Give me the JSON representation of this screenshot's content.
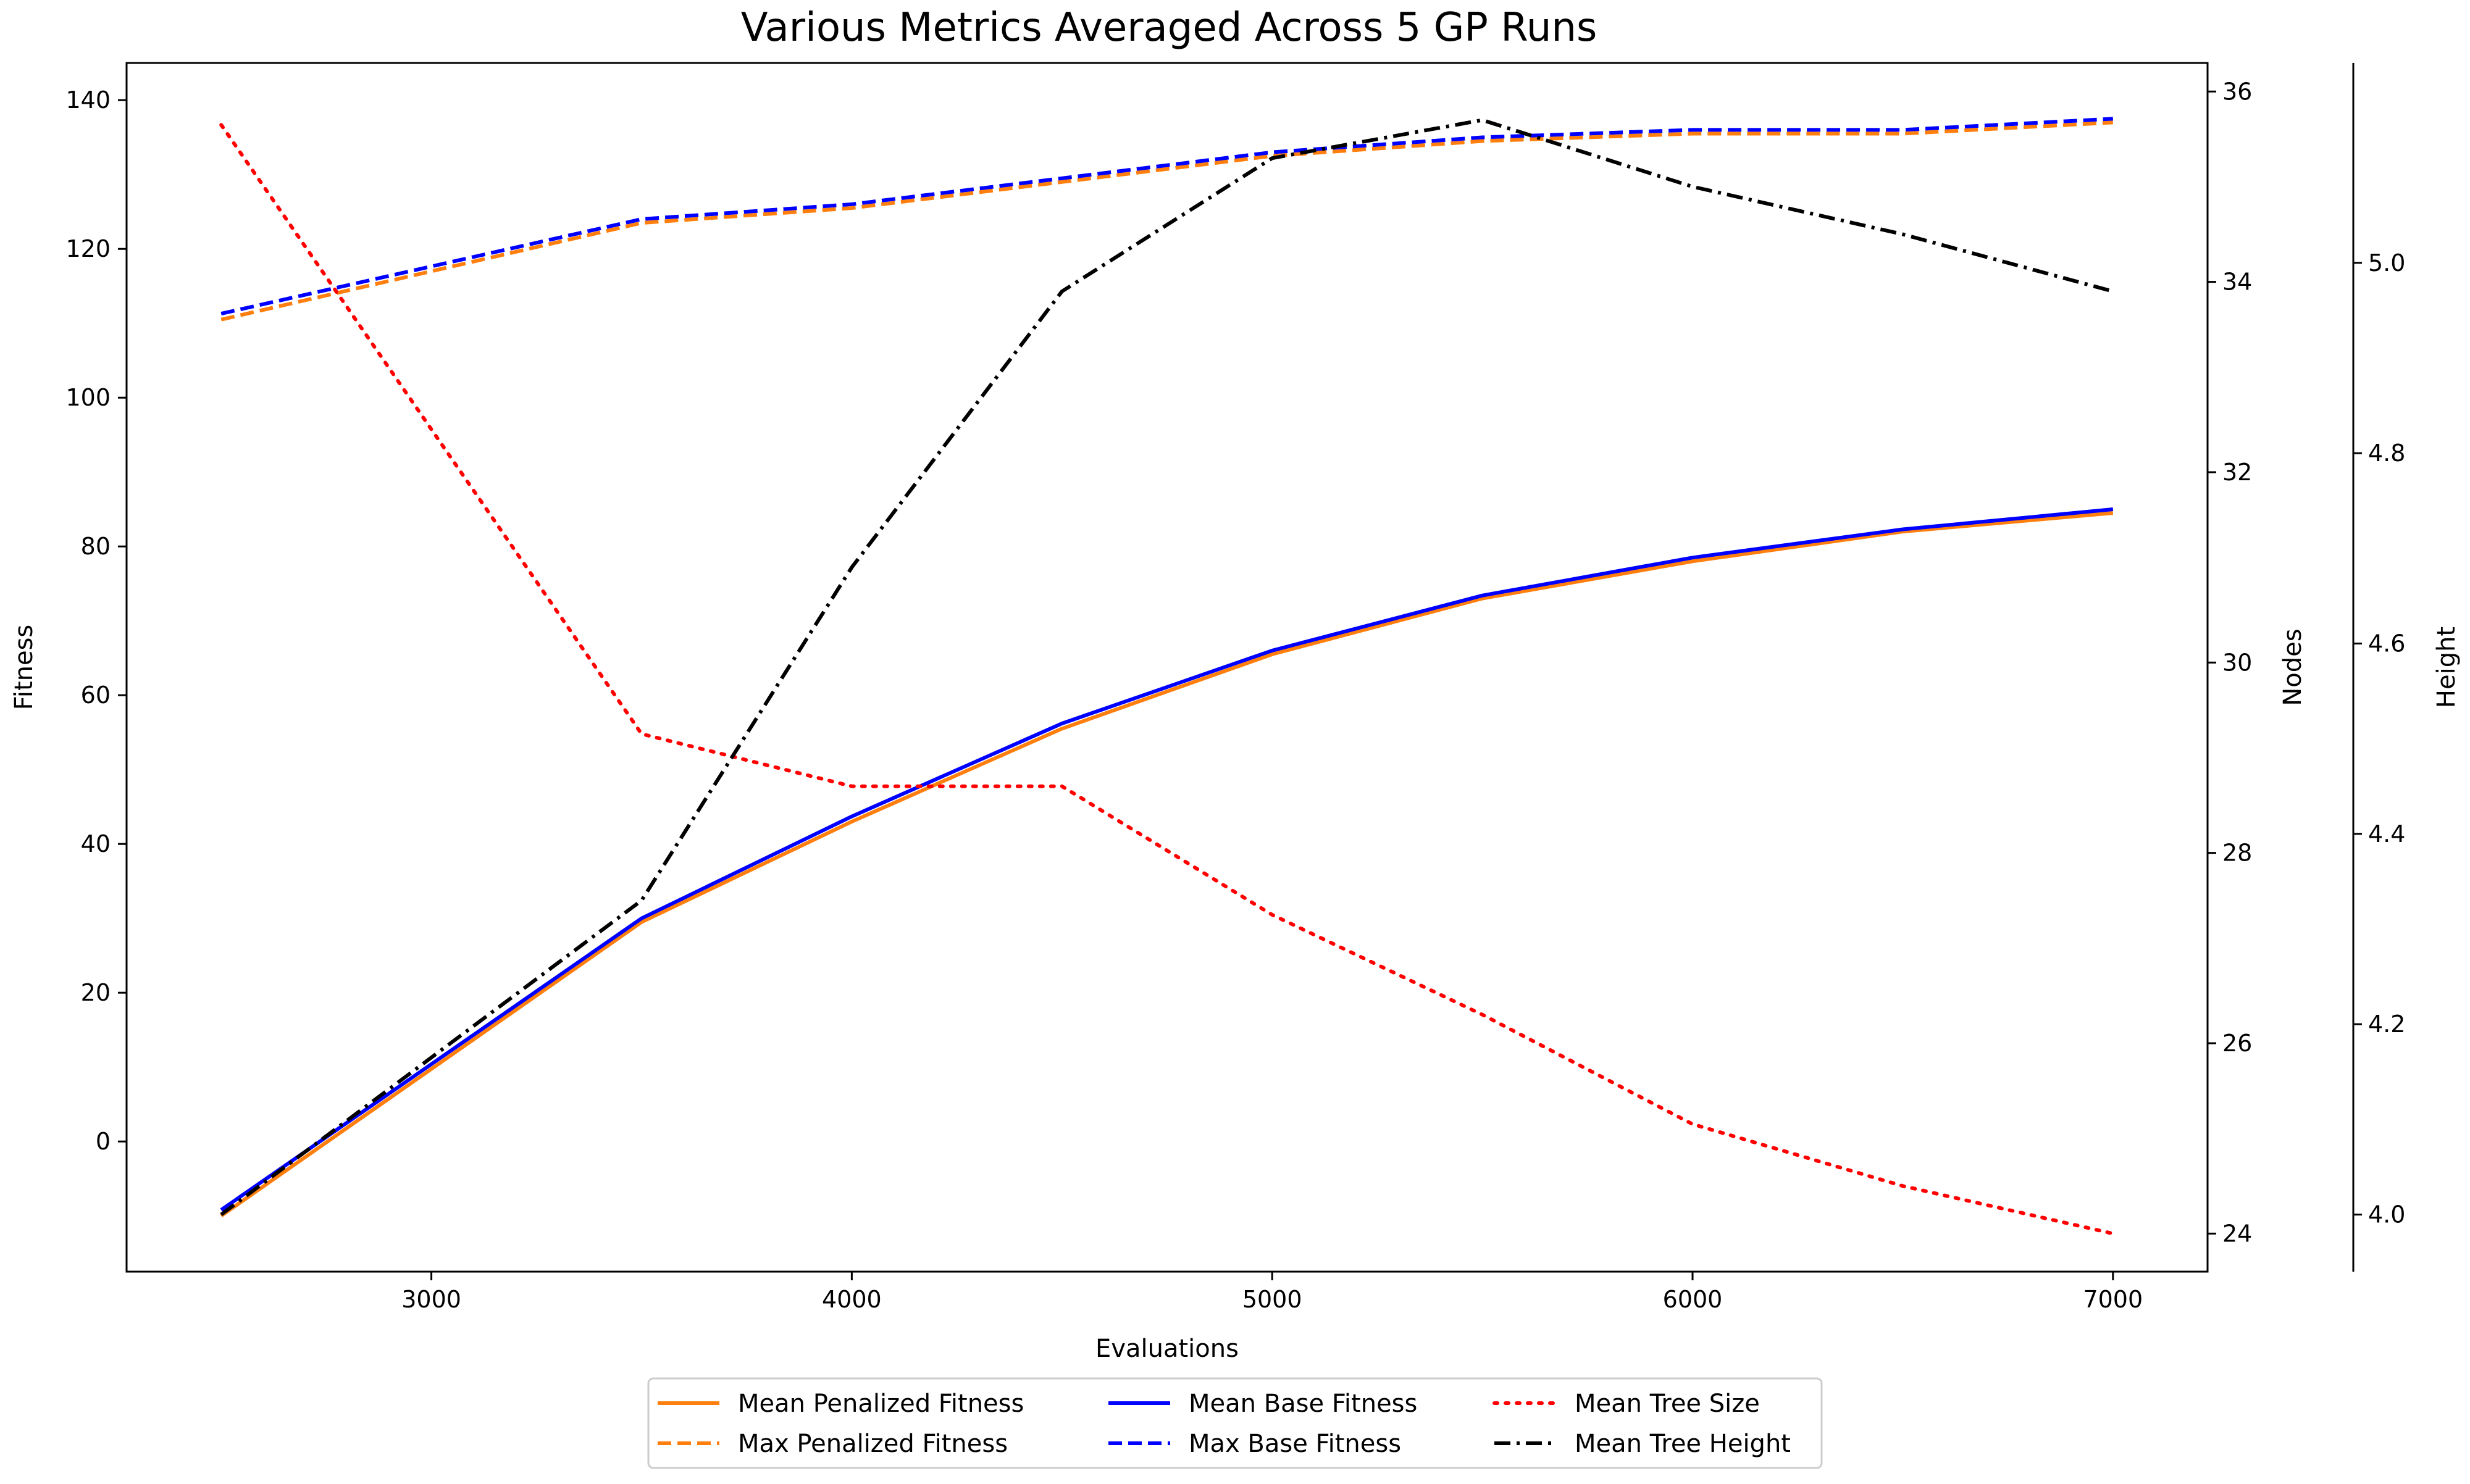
{
  "chart_data": {
    "type": "line",
    "title": "Various Metrics Averaged Across 5 GP Runs",
    "xlabel": "Evaluations",
    "ylabel": "Fitness",
    "y2label": "Nodes",
    "y3label": "Height",
    "x": [
      2500,
      3500,
      4000,
      4500,
      5000,
      5500,
      6000,
      6500,
      7000
    ],
    "xlim": [
      2275,
      7225
    ],
    "ylim": [
      -17.5,
      145
    ],
    "y2lim": [
      23.6,
      36.3
    ],
    "y3lim": [
      3.94,
      5.21
    ],
    "xticks": [
      "3000",
      "4000",
      "5000",
      "6000",
      "7000"
    ],
    "yticks": [
      "0",
      "20",
      "40",
      "60",
      "80",
      "100",
      "120",
      "140"
    ],
    "y2ticks": [
      "24",
      "26",
      "28",
      "30",
      "32",
      "34",
      "36"
    ],
    "y3ticks": [
      "4.0",
      "4.2",
      "4.4",
      "4.6",
      "4.8",
      "5.0"
    ],
    "grid": false,
    "legend_position": "bottom-center",
    "series": [
      {
        "name": "Mean Penalized Fitness",
        "axis": "left",
        "color": "#ff7f0e",
        "style": "solid",
        "values": [
          -10,
          29.5,
          43,
          55.5,
          65.5,
          73,
          78,
          82,
          84.5
        ]
      },
      {
        "name": "Max Penalized Fitness",
        "axis": "left",
        "color": "#ff7f0e",
        "style": "dashed",
        "values": [
          110.5,
          123.5,
          125.5,
          129,
          132.5,
          134.5,
          135.5,
          135.5,
          137
        ]
      },
      {
        "name": "Mean Base Fitness",
        "axis": "left",
        "color": "#0000ff",
        "style": "solid",
        "values": [
          -9.2,
          30,
          43.7,
          56.2,
          66,
          73.4,
          78.5,
          82.3,
          85
        ]
      },
      {
        "name": "Max Base Fitness",
        "axis": "left",
        "color": "#0000ff",
        "style": "dashed",
        "values": [
          111.3,
          124,
          126,
          129.5,
          133,
          135,
          136,
          136,
          137.5
        ]
      },
      {
        "name": "Mean Tree Size",
        "axis": "right",
        "color": "#ff0000",
        "style": "dotted",
        "values": [
          35.65,
          29.25,
          28.7,
          28.7,
          27.35,
          26.3,
          25.15,
          24.5,
          24
        ]
      },
      {
        "name": "Mean Tree Height",
        "axis": "right2",
        "color": "#000000",
        "style": "dashdot",
        "values": [
          4.0,
          4.33,
          4.68,
          4.97,
          5.11,
          5.15,
          5.08,
          5.03,
          4.97
        ]
      }
    ]
  }
}
